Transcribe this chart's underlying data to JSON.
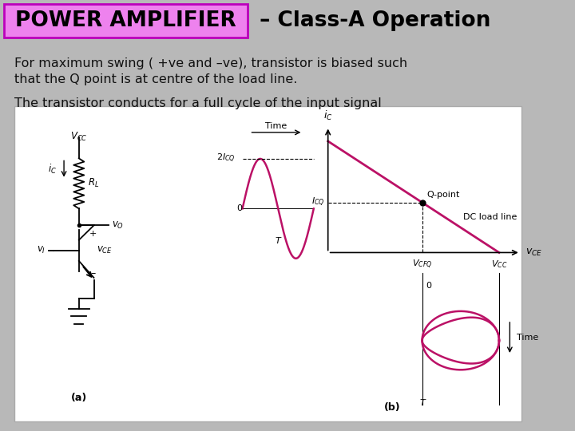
{
  "title_box_text": "POWER AMPLIFIER",
  "title_rest": " – Class-A Operation",
  "title_box_color": "#ee82ee",
  "title_box_border": "#bb00bb",
  "title_text_color": "#000000",
  "slide_bg": "#b8b8b8",
  "white_panel_color": "#ffffff",
  "text_line1": "For maximum swing ( +ve and –ve), transistor is biased such",
  "text_line2": "that the Q point is at centre of the load line.",
  "text_line3": "The transistor conducts for a full cycle of the input signal",
  "text_color": "#111111",
  "text_fontsize": 11.5,
  "title_fontsize": 19,
  "pink": "#bb1166",
  "label_fontsize": 8,
  "small_fontsize": 7
}
